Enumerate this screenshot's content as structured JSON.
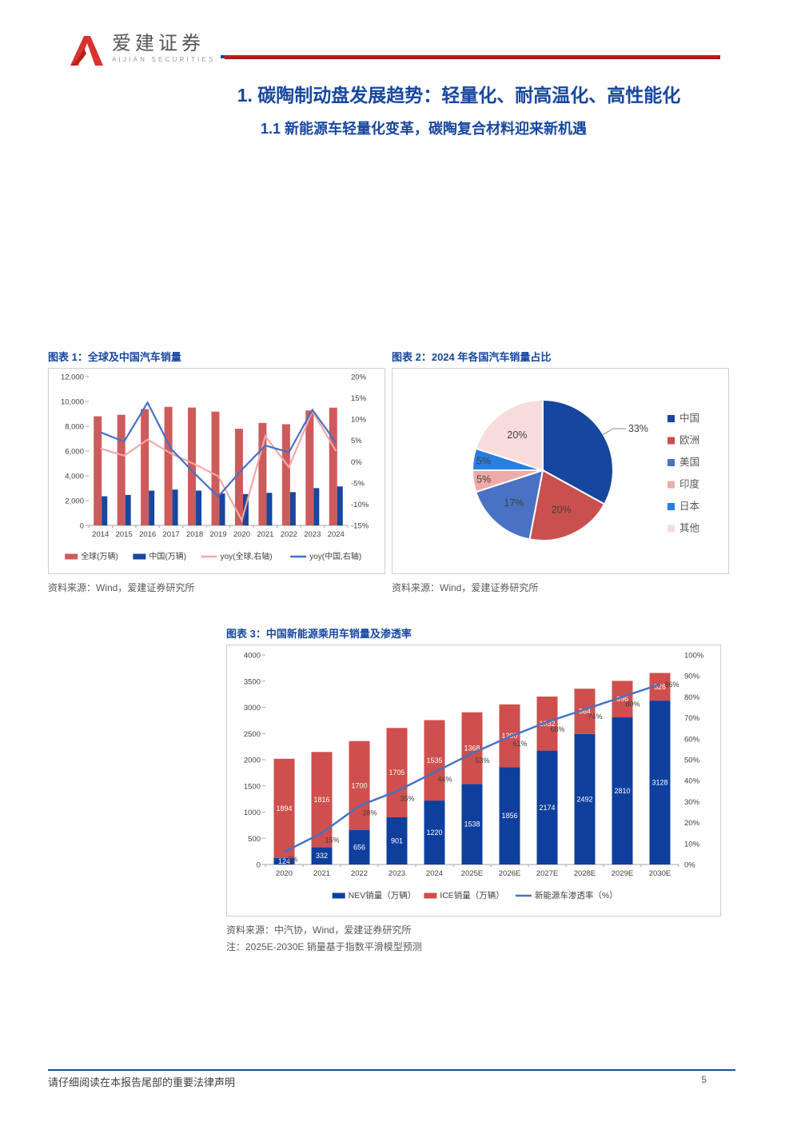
{
  "header": {
    "logo_text": "爱建证券",
    "logo_subtext": "AIJIAN SECURITIES"
  },
  "title": {
    "section": "1. 碳陶制动盘发展趋势：轻量化、耐高温化、高性能化",
    "sub": "1.1 新能源车轻量化变革，碳陶复合材料迎来新机遇"
  },
  "figures": {
    "fig1": {
      "title": "图表 1：全球及中国汽车销量",
      "source": "资料来源：Wind，爱建证券研究所"
    },
    "fig2": {
      "title": "图表 2：2024 年各国汽车销量占比",
      "source": "资料来源：Wind，爱建证券研究所"
    },
    "fig3": {
      "title": "图表 3：中国新能源乘用车销量及渗透率",
      "source": "资料来源：中汽协，Wind，爱建证券研究所",
      "note": "注：2025E-2030E 销量基于指数平滑模型预测"
    }
  },
  "footer": {
    "disclaimer": "请仔细阅读在本报告尾部的重要法律声明",
    "page": "5"
  },
  "colors": {
    "accent_blue": "#17479e",
    "bar_red": "#ce5b5b",
    "bar_navy": "#17479e",
    "line_pink": "#f4a7a7",
    "line_blue": "#4472c4",
    "header_rule_red": "#c61a1a"
  },
  "chart_data": [
    {
      "type": "bar",
      "title": "全球及中国汽车销量",
      "categories": [
        "2014",
        "2015",
        "2016",
        "2017",
        "2018",
        "2019",
        "2020",
        "2021",
        "2022",
        "2023",
        "2024"
      ],
      "series": [
        {
          "name": "全球(万辆)",
          "kind": "bar",
          "axis": "left",
          "color": "#ce5b5b",
          "values": [
            8801,
            8924,
            9386,
            9566,
            9506,
            9179,
            7797,
            8268,
            8163,
            9272,
            9500
          ]
        },
        {
          "name": "中国(万辆)",
          "kind": "bar",
          "axis": "left",
          "color": "#17479e",
          "values": [
            2349,
            2460,
            2803,
            2888,
            2808,
            2577,
            2531,
            2628,
            2686,
            3009,
            3144
          ]
        },
        {
          "name": "yoy(全球,右轴)",
          "kind": "line",
          "axis": "right",
          "color": "#f4a7a7",
          "values": [
            3.1,
            1.4,
            5.2,
            1.9,
            -0.6,
            -3.4,
            -13.8,
            6.0,
            -1.3,
            11.9,
            2.5
          ]
        },
        {
          "name": "yoy(中国,右轴)",
          "kind": "line",
          "axis": "right",
          "color": "#4472c4",
          "values": [
            6.9,
            4.7,
            13.9,
            3.0,
            -2.8,
            -8.2,
            -1.9,
            3.8,
            2.2,
            12.2,
            4.5
          ]
        }
      ],
      "left_axis": {
        "min": 0,
        "max": 12000,
        "step": 2000
      },
      "right_axis": {
        "min": -15,
        "max": 20,
        "step": 5,
        "suffix": "%"
      },
      "grid": false,
      "legend_position": "bottom"
    },
    {
      "type": "pie",
      "title": "2024 年各国汽车销量占比",
      "slices": [
        {
          "label": "中国",
          "value": 33,
          "color": "#16469d",
          "label_outside": true
        },
        {
          "label": "欧洲",
          "value": 20,
          "color": "#c9504e"
        },
        {
          "label": "美国",
          "value": 17,
          "color": "#4a72c4"
        },
        {
          "label": "印度",
          "value": 5,
          "color": "#efaaaa"
        },
        {
          "label": "日本",
          "value": 5,
          "color": "#2a7de1"
        },
        {
          "label": "其他",
          "value": 20,
          "color": "#f8dcdc"
        }
      ],
      "legend_position": "right"
    },
    {
      "type": "bar",
      "subtype": "stacked",
      "title": "中国新能源乘用车销量及渗透率",
      "categories": [
        "2020",
        "2021",
        "2022",
        "2023",
        "2024",
        "2025E",
        "2026E",
        "2027E",
        "2028E",
        "2029E",
        "2030E"
      ],
      "series": [
        {
          "name": "NEV销量（万辆）",
          "kind": "bar",
          "axis": "left",
          "color": "#0e3f9d",
          "values": [
            124,
            332,
            656,
            901,
            1220,
            1538,
            1856,
            2174,
            2492,
            2810,
            3128
          ]
        },
        {
          "name": "ICE销量（万辆）",
          "kind": "bar",
          "axis": "left",
          "color": "#ce4f4d",
          "values": [
            1894,
            1816,
            1700,
            1705,
            1535,
            1368,
            1200,
            1032,
            864,
            696,
            528
          ]
        },
        {
          "name": "新能源车渗透率（%）",
          "kind": "line",
          "axis": "right",
          "color": "#4472c4",
          "values": [
            6,
            15,
            28,
            35,
            44,
            53,
            61,
            68,
            74,
            80,
            86
          ]
        }
      ],
      "left_axis": {
        "min": 0,
        "max": 4000,
        "step": 500
      },
      "right_axis": {
        "min": 0,
        "max": 100,
        "step": 10,
        "suffix": "%"
      },
      "grid": false,
      "legend_position": "bottom",
      "bar_labels": true
    }
  ]
}
